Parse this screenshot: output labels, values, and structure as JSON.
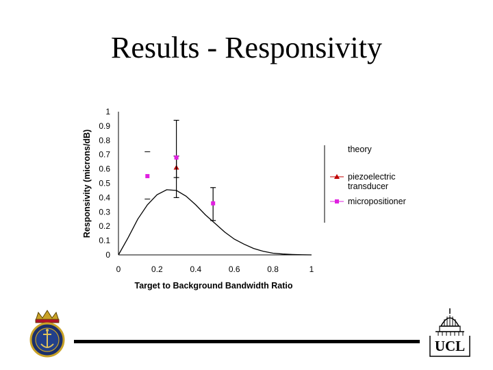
{
  "slide": {
    "title": "Results - Responsivity"
  },
  "logos": {
    "left_crest_text": "ROYAL NAVY",
    "right_logo_text": "UCL"
  },
  "colors": {
    "theory": "#000000",
    "piezoelectric": "#c00000",
    "micropositioner": "#e020e0"
  },
  "chart_data": {
    "type": "scatter",
    "title": "",
    "xlabel": "Target to Background Bandwidth Ratio",
    "ylabel": "Responsivity (microns/dB)",
    "xlim": [
      0,
      1
    ],
    "ylim": [
      0,
      1
    ],
    "x_ticks": [
      "0",
      "0.2",
      "0.4",
      "0.6",
      "0.8",
      "1"
    ],
    "y_ticks": [
      "0",
      "0.1",
      "0.2",
      "0.3",
      "0.4",
      "0.5",
      "0.6",
      "0.7",
      "0.8",
      "0.9",
      "1"
    ],
    "grid": false,
    "legend_position": "right",
    "series": [
      {
        "name": "theory",
        "kind": "line",
        "points": [
          [
            0,
            0
          ],
          [
            0.05,
            0.12
          ],
          [
            0.1,
            0.25
          ],
          [
            0.15,
            0.35
          ],
          [
            0.2,
            0.42
          ],
          [
            0.25,
            0.455
          ],
          [
            0.3,
            0.45
          ],
          [
            0.35,
            0.41
          ],
          [
            0.4,
            0.35
          ],
          [
            0.45,
            0.28
          ],
          [
            0.5,
            0.22
          ],
          [
            0.55,
            0.16
          ],
          [
            0.6,
            0.11
          ],
          [
            0.65,
            0.075
          ],
          [
            0.7,
            0.045
          ],
          [
            0.75,
            0.025
          ],
          [
            0.8,
            0.012
          ],
          [
            0.85,
            0.006
          ],
          [
            0.9,
            0.003
          ],
          [
            0.95,
            0.001
          ],
          [
            1.0,
            0.0
          ]
        ]
      },
      {
        "name": "piezoelectric transducer",
        "kind": "markers",
        "marker": "triangle",
        "points": [
          [
            0.3,
            0.61
          ]
        ],
        "error_bars": [
          [
            0.3,
            0.54,
            0.69
          ]
        ]
      },
      {
        "name": "micropositioner",
        "kind": "markers",
        "marker": "square",
        "points": [
          [
            0.15,
            0.55
          ],
          [
            0.3,
            0.68
          ],
          [
            0.49,
            0.36
          ]
        ],
        "error_bars": [
          [
            0.3,
            0.4,
            0.94
          ],
          [
            0.49,
            0.24,
            0.47
          ]
        ]
      }
    ],
    "extra_marks": [
      [
        0.15,
        0.72
      ],
      [
        0.15,
        0.39
      ]
    ],
    "legend": [
      {
        "label_lines": [
          "theory"
        ],
        "series": "theory"
      },
      {
        "label_lines": [
          "piezoelectric",
          "transducer"
        ],
        "series": "piezoelectric transducer"
      },
      {
        "label_lines": [
          "micropositioner"
        ],
        "series": "micropositioner"
      }
    ]
  }
}
